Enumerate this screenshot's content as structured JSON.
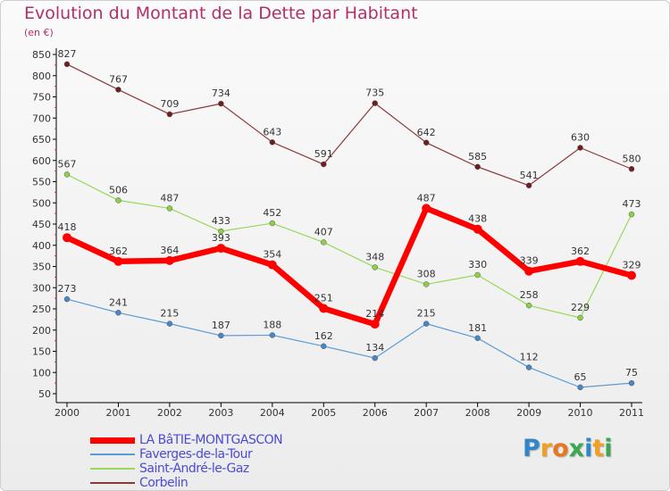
{
  "title": "Evolution du Montant de la Dette par Habitant",
  "unit_label": "(en €)",
  "brand": {
    "text": "Proxiti",
    "letters": [
      {
        "ch": "P",
        "color": "#2f86c8"
      },
      {
        "ch": "r",
        "color": "#f0a020"
      },
      {
        "ch": "o",
        "color": "#e87820"
      },
      {
        "ch": "x",
        "color": "#3aa850"
      },
      {
        "ch": "i",
        "color": "#2f86c8"
      },
      {
        "ch": "t",
        "color": "#f0a020"
      },
      {
        "ch": "i",
        "color": "#3aa850"
      }
    ]
  },
  "chart_data": {
    "type": "line",
    "title": "Evolution du Montant de la Dette par Habitant",
    "ylabel": "(en €)",
    "xlabel": "",
    "x": [
      "2000",
      "2001",
      "2002",
      "2003",
      "2004",
      "2005",
      "2006",
      "2007",
      "2008",
      "2009",
      "2010",
      "2011"
    ],
    "ylim": [
      50,
      850
    ],
    "yticks": [
      50,
      100,
      150,
      200,
      250,
      300,
      350,
      400,
      450,
      500,
      550,
      600,
      650,
      700,
      750,
      800,
      850
    ],
    "grid": false,
    "legend": "bottom-left",
    "series": [
      {
        "name": "LA BâTIE-MONTGASCON",
        "color": "#ff0000",
        "values": [
          418,
          362,
          364,
          393,
          354,
          251,
          214,
          487,
          438,
          339,
          362,
          329
        ],
        "labels": [
          "418",
          "362",
          "364",
          "393",
          "354",
          "251",
          "214",
          "487",
          "438",
          "339",
          "362",
          "329"
        ]
      },
      {
        "name": "Faverges-de-la-Tour",
        "color": "#5b9bd5",
        "values": [
          273,
          241,
          215,
          187,
          188,
          162,
          134,
          215,
          181,
          112,
          65,
          75
        ],
        "labels": [
          "273",
          "241",
          "215",
          "187",
          "188",
          "162",
          "134",
          "215",
          "181",
          "112",
          "65",
          "75"
        ]
      },
      {
        "name": "Saint-André-le-Gaz",
        "color": "#98d85a",
        "values": [
          567,
          506,
          487,
          433,
          452,
          407,
          348,
          308,
          330,
          258,
          229,
          473
        ],
        "labels": [
          "567",
          "506",
          "487",
          "433",
          "452",
          "407",
          "348",
          "308",
          "330",
          "258",
          "229",
          "473"
        ]
      },
      {
        "name": "Corbelin",
        "color": "#8b3a3a",
        "values": [
          827,
          767,
          709,
          734,
          643,
          591,
          735,
          642,
          585,
          541,
          630,
          580
        ],
        "labels": [
          "827",
          "767",
          "709",
          "734",
          "643",
          "591",
          "735",
          "642",
          "585",
          "541",
          "630",
          "580"
        ]
      }
    ]
  }
}
